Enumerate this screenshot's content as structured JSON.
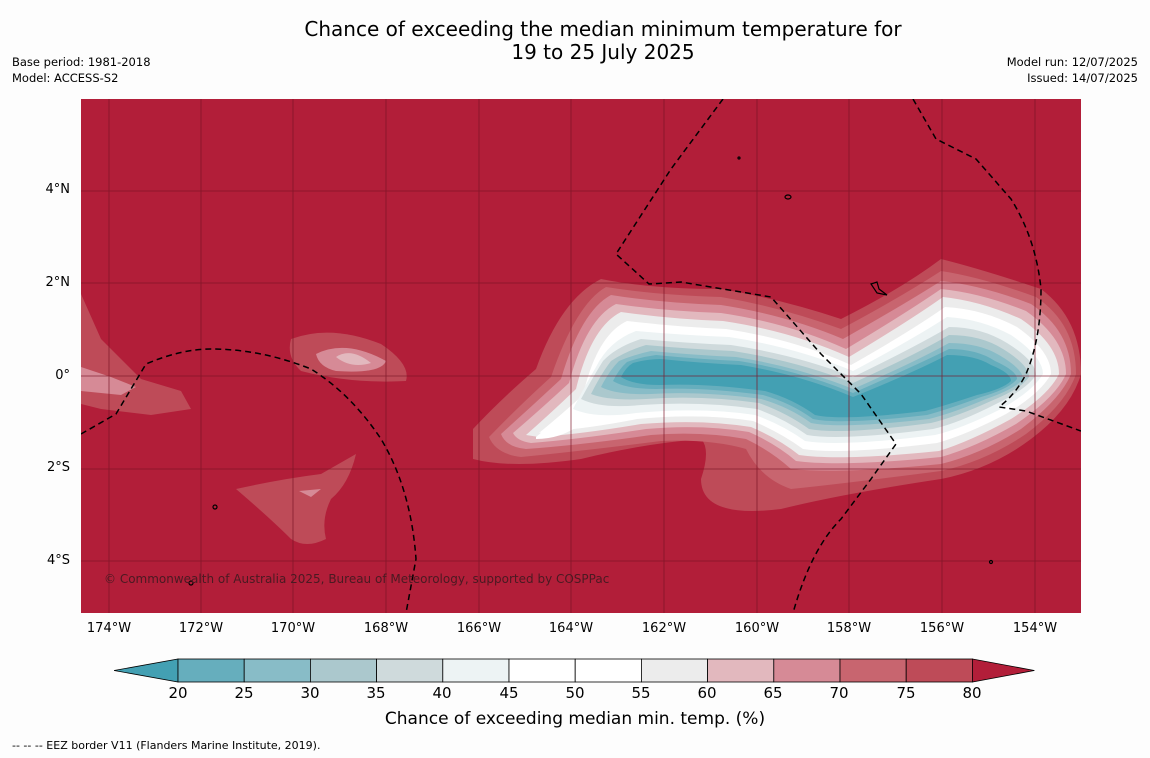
{
  "header": {
    "title_line1": "Chance of exceeding the median minimum temperature for",
    "title_line2": "19 to 25 July 2025",
    "base_period": "Base period: 1981-2018",
    "model": "Model: ACCESS-S2",
    "model_run": "Model run: 12/07/2025",
    "issued": "Issued: 14/07/2025"
  },
  "map": {
    "copyright": "© Commonwealth of Australia 2025, Bureau of Meteorology, supported by COSPPac",
    "lat_labels": [
      "4°N",
      "2°N",
      "0°",
      "2°S",
      "4°S"
    ],
    "lon_labels": [
      "174°W",
      "172°W",
      "170°W",
      "168°W",
      "166°W",
      "164°W",
      "162°W",
      "160°W",
      "158°W",
      "156°W",
      "154°W"
    ],
    "background_color": "#b21e39"
  },
  "colorbar": {
    "ticks": [
      "20",
      "25",
      "30",
      "35",
      "40",
      "45",
      "50",
      "55",
      "60",
      "65",
      "70",
      "75",
      "80"
    ],
    "colors": [
      "#43a0b3",
      "#66aebd",
      "#88bcc7",
      "#abc8cd",
      "#cfdadc",
      "#edf3f4",
      "#ffffff",
      "#ffffff",
      "#ececec",
      "#e2b8be",
      "#d68a96",
      "#c8656f",
      "#be4b58",
      "#b21e39"
    ],
    "label": "Chance of exceeding median min. temp. (%)"
  },
  "footnote": "-- -- -- EEZ border V11 (Flanders Marine Institute, 2019)."
}
